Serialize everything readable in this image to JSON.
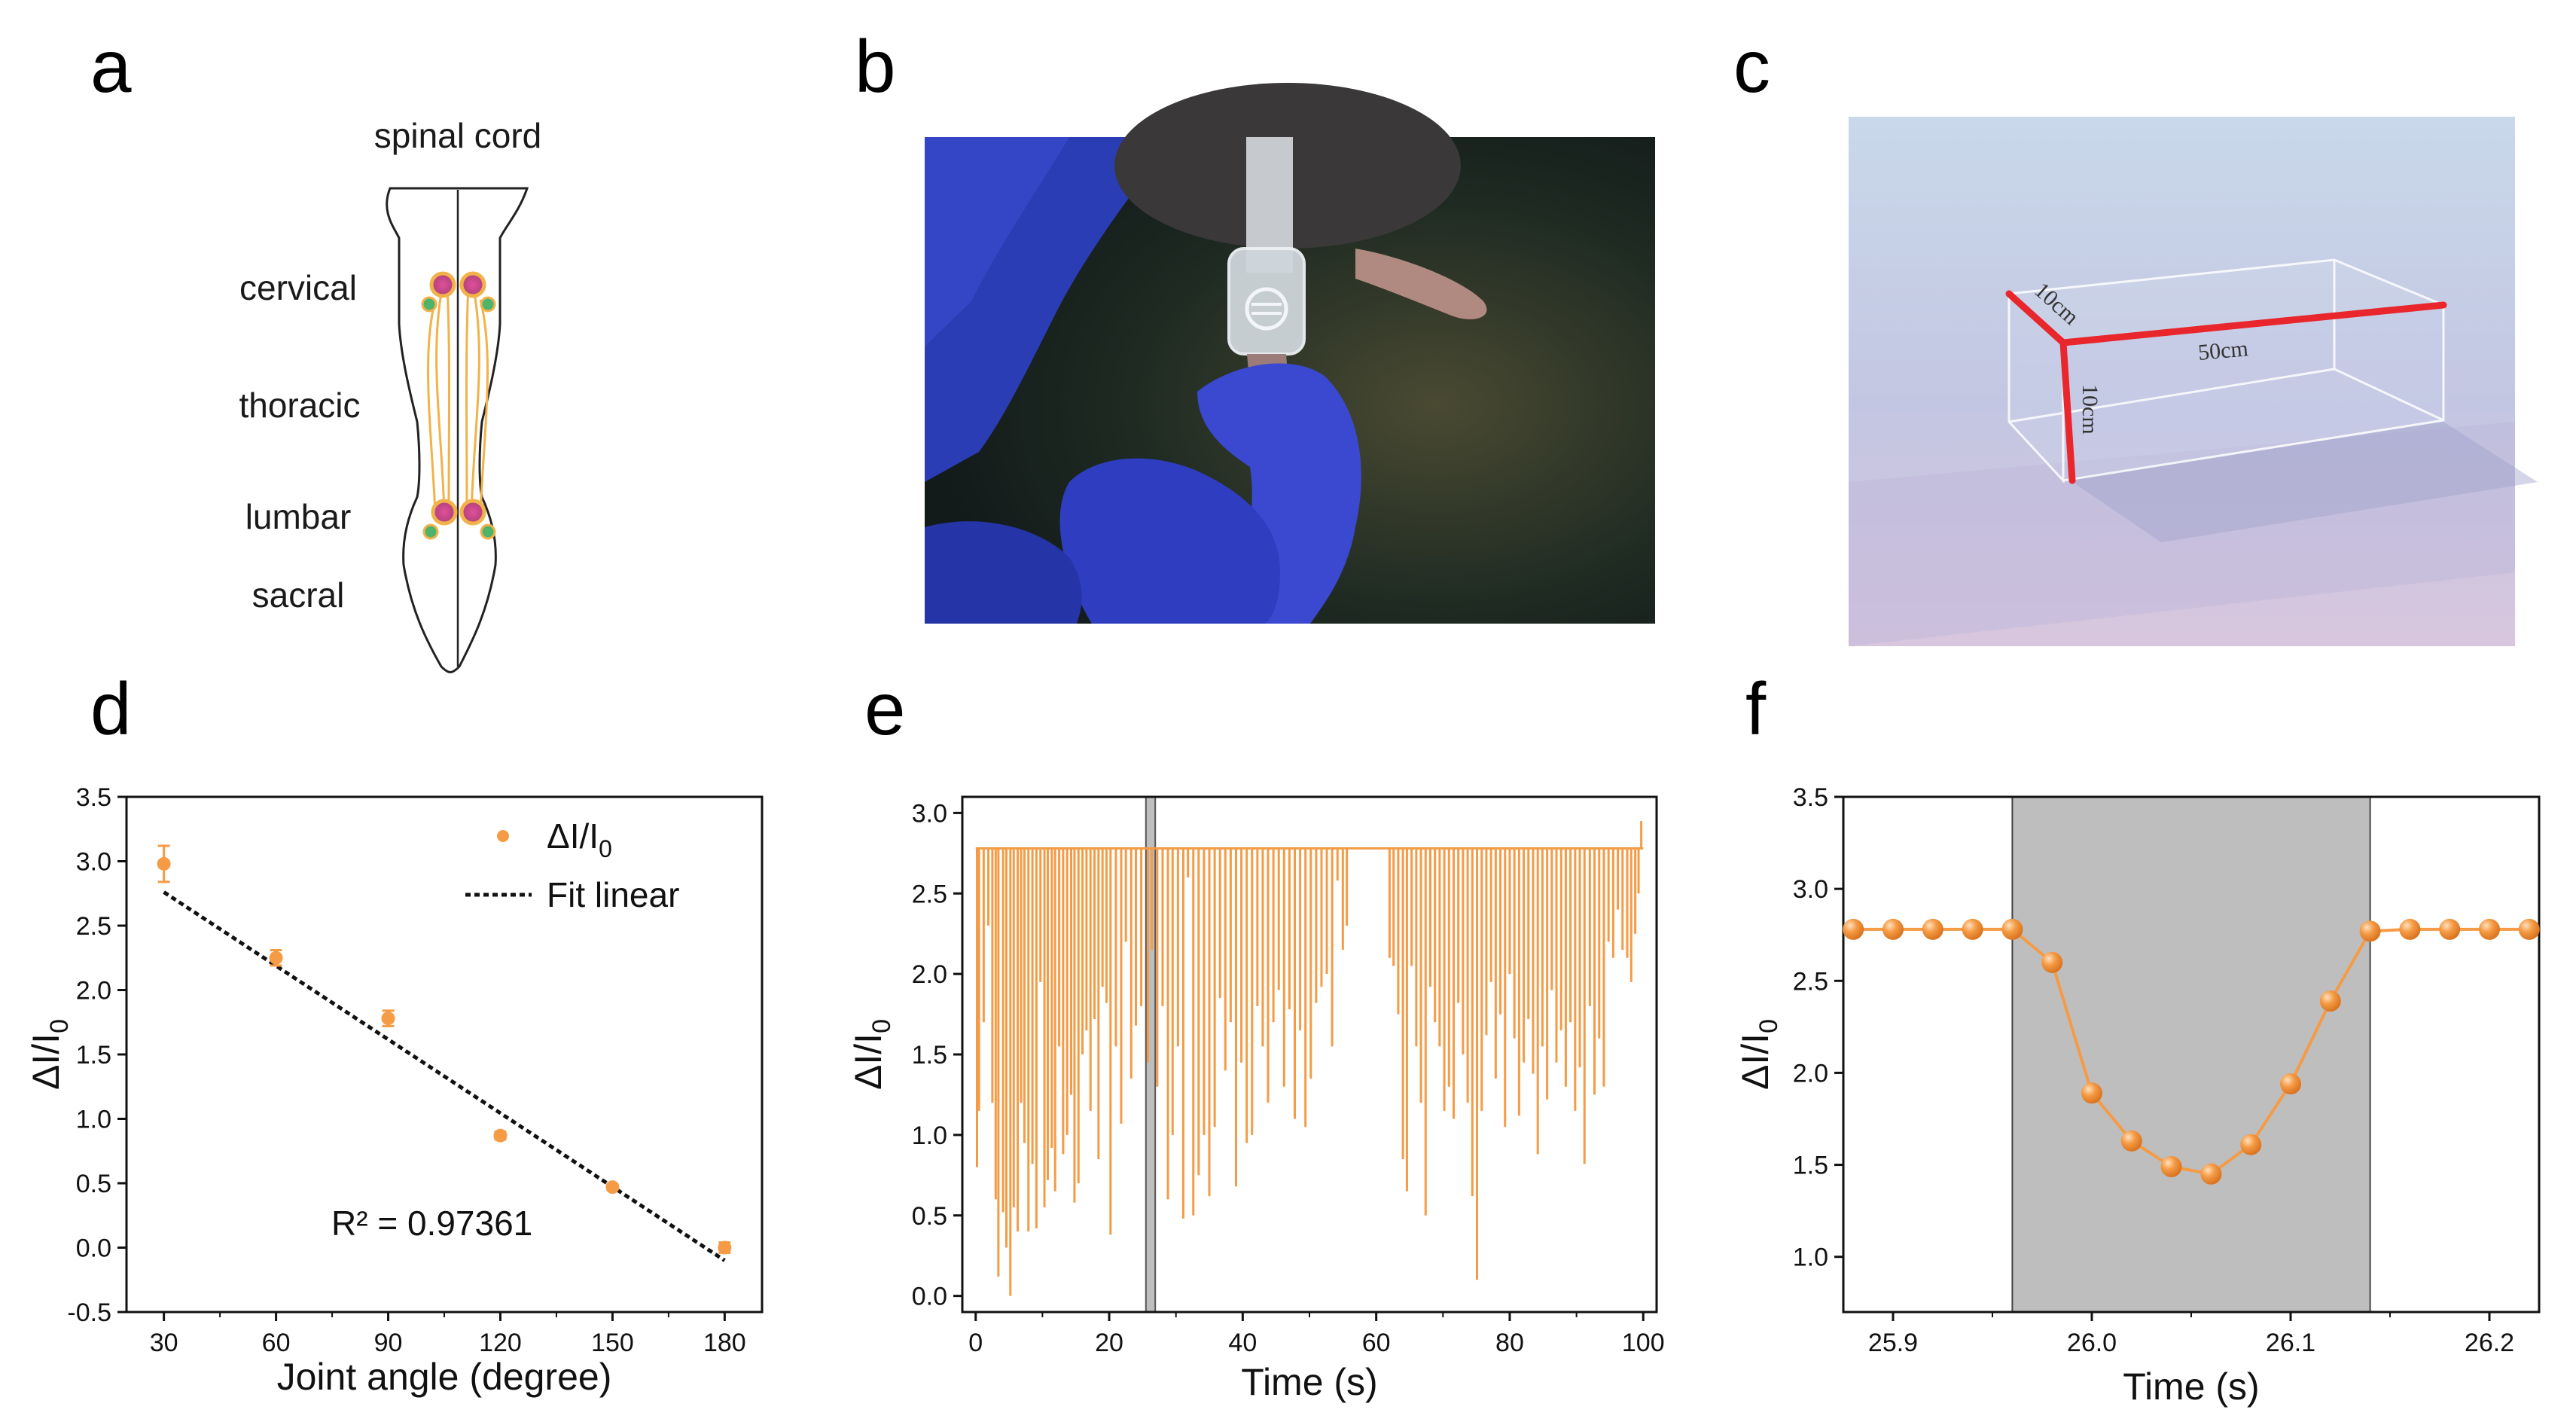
{
  "panels": {
    "a": {
      "label": "a",
      "title": "spinal cord",
      "regions": [
        "cervical",
        "thoracic",
        "lumbar",
        "sacral"
      ]
    },
    "b": {
      "label": "b"
    },
    "c": {
      "label": "c",
      "dimensions": {
        "width": "10cm",
        "length": "50cm",
        "height": "10cm"
      }
    },
    "d": {
      "label": "d"
    },
    "e": {
      "label": "e"
    },
    "f": {
      "label": "f"
    }
  },
  "colors": {
    "series": "#F59B45",
    "fit": "#111111",
    "shade": "#BEBEBE"
  },
  "chart_data": [
    {
      "id": "d",
      "type": "scatter",
      "x": [
        30,
        60,
        90,
        120,
        150,
        180
      ],
      "y": [
        2.98,
        2.25,
        1.78,
        0.87,
        0.47,
        0.0
      ],
      "yerr": [
        0.14,
        0.06,
        0.06,
        0.03,
        0.02,
        0.04
      ],
      "fit": {
        "slope": -0.01933,
        "intercept": 3.38
      },
      "series_label": "ΔI/I0",
      "fit_label": "Fit linear",
      "r2_label": "R² = 0.97361",
      "xlabel": "Joint angle (degree)",
      "ylabel": "ΔI/I0",
      "xlim": [
        20,
        190
      ],
      "ylim": [
        -0.5,
        3.5
      ],
      "xticks": [
        "30",
        "60",
        "90",
        "120",
        "150",
        "180"
      ],
      "yticks": [
        "-0.5",
        "0.0",
        "0.5",
        "1.0",
        "1.5",
        "2.0",
        "2.5",
        "3.0",
        "3.5"
      ]
    },
    {
      "id": "e",
      "type": "line",
      "baseline": 2.78,
      "spikes": [
        [
          0.2,
          0.8
        ],
        [
          0.5,
          1.15
        ],
        [
          1.2,
          1.7
        ],
        [
          1.9,
          2.3
        ],
        [
          2.5,
          1.2
        ],
        [
          3.0,
          0.6
        ],
        [
          3.4,
          0.12
        ],
        [
          4.1,
          0.52
        ],
        [
          4.6,
          0.3
        ],
        [
          5.2,
          0.0
        ],
        [
          5.7,
          0.55
        ],
        [
          6.3,
          0.4
        ],
        [
          6.8,
          1.2
        ],
        [
          7.3,
          0.95
        ],
        [
          7.9,
          0.4
        ],
        [
          8.5,
          0.82
        ],
        [
          9.1,
          0.42
        ],
        [
          9.7,
          1.95
        ],
        [
          10.3,
          0.55
        ],
        [
          10.8,
          0.72
        ],
        [
          11.4,
          0.92
        ],
        [
          11.9,
          0.65
        ],
        [
          12.5,
          1.55
        ],
        [
          13.1,
          0.88
        ],
        [
          13.7,
          1.0
        ],
        [
          14.3,
          1.25
        ],
        [
          14.8,
          0.58
        ],
        [
          15.4,
          0.7
        ],
        [
          16.0,
          1.5
        ],
        [
          16.6,
          1.65
        ],
        [
          17.2,
          1.15
        ],
        [
          17.8,
          1.72
        ],
        [
          18.4,
          0.85
        ],
        [
          19.0,
          1.92
        ],
        [
          19.6,
          1.82
        ],
        [
          20.2,
          0.38
        ],
        [
          21.0,
          1.55
        ],
        [
          21.8,
          1.07
        ],
        [
          22.5,
          2.2
        ],
        [
          23.3,
          1.35
        ],
        [
          24.0,
          1.68
        ],
        [
          24.8,
          1.8
        ],
        [
          25.8,
          1.45
        ],
        [
          26.4,
          2.15
        ],
        [
          27.2,
          1.3
        ],
        [
          28.0,
          1.8
        ],
        [
          28.8,
          0.6
        ],
        [
          29.5,
          1.0
        ],
        [
          30.3,
          1.55
        ],
        [
          31.1,
          0.48
        ],
        [
          31.8,
          2.6
        ],
        [
          32.6,
          0.5
        ],
        [
          33.4,
          0.75
        ],
        [
          34.2,
          1.0
        ],
        [
          35.0,
          0.62
        ],
        [
          35.8,
          1.05
        ],
        [
          36.6,
          1.85
        ],
        [
          37.4,
          1.4
        ],
        [
          38.2,
          1.7
        ],
        [
          39.0,
          0.68
        ],
        [
          39.8,
          1.45
        ],
        [
          40.6,
          0.95
        ],
        [
          41.4,
          1.0
        ],
        [
          42.2,
          1.8
        ],
        [
          43.0,
          1.55
        ],
        [
          43.8,
          1.2
        ],
        [
          44.6,
          1.7
        ],
        [
          45.4,
          1.9
        ],
        [
          46.2,
          1.3
        ],
        [
          47.0,
          1.78
        ],
        [
          47.8,
          1.1
        ],
        [
          48.6,
          1.65
        ],
        [
          49.4,
          1.05
        ],
        [
          50.2,
          1.35
        ],
        [
          51.0,
          1.82
        ],
        [
          51.8,
          1.92
        ],
        [
          52.6,
          2.0
        ],
        [
          53.4,
          1.55
        ],
        [
          54.2,
          2.58
        ],
        [
          55.0,
          2.15
        ],
        [
          55.6,
          2.3
        ],
        [
          62.0,
          2.1
        ],
        [
          62.6,
          2.05
        ],
        [
          63.3,
          1.75
        ],
        [
          64.0,
          0.85
        ],
        [
          64.6,
          0.65
        ],
        [
          65.3,
          2.05
        ],
        [
          66.0,
          1.55
        ],
        [
          66.7,
          1.2
        ],
        [
          67.4,
          0.5
        ],
        [
          68.1,
          1.92
        ],
        [
          68.8,
          1.7
        ],
        [
          69.5,
          1.55
        ],
        [
          70.2,
          1.15
        ],
        [
          70.9,
          1.3
        ],
        [
          71.6,
          1.1
        ],
        [
          72.3,
          1.82
        ],
        [
          73.0,
          1.5
        ],
        [
          73.7,
          1.2
        ],
        [
          74.4,
          0.62
        ],
        [
          75.1,
          0.1
        ],
        [
          75.8,
          1.15
        ],
        [
          76.5,
          1.62
        ],
        [
          77.2,
          1.95
        ],
        [
          77.9,
          1.35
        ],
        [
          78.6,
          1.75
        ],
        [
          79.3,
          1.05
        ],
        [
          80.0,
          2.0
        ],
        [
          80.7,
          1.6
        ],
        [
          81.4,
          1.12
        ],
        [
          82.1,
          1.45
        ],
        [
          82.8,
          1.72
        ],
        [
          83.5,
          1.38
        ],
        [
          84.2,
          0.88
        ],
        [
          84.9,
          1.55
        ],
        [
          85.6,
          1.22
        ],
        [
          86.3,
          1.9
        ],
        [
          87.0,
          1.45
        ],
        [
          87.7,
          1.65
        ],
        [
          88.4,
          1.3
        ],
        [
          89.1,
          1.7
        ],
        [
          89.8,
          1.15
        ],
        [
          90.5,
          1.42
        ],
        [
          91.2,
          0.82
        ],
        [
          92.0,
          1.8
        ],
        [
          92.7,
          1.25
        ],
        [
          93.4,
          1.6
        ],
        [
          94.1,
          1.3
        ],
        [
          94.8,
          2.2
        ],
        [
          95.5,
          2.1
        ],
        [
          96.2,
          2.4
        ],
        [
          96.9,
          2.15
        ],
        [
          97.6,
          2.1
        ],
        [
          98.2,
          1.95
        ],
        [
          98.8,
          2.25
        ],
        [
          99.3,
          2.5
        ],
        [
          99.7,
          2.95
        ]
      ],
      "highlight": [
        25.5,
        26.9
      ],
      "xlabel": "Time (s)",
      "ylabel": "ΔI/I0",
      "xlim": [
        -2,
        102
      ],
      "ylim": [
        -0.1,
        3.1
      ],
      "xticks": [
        "0",
        "20",
        "40",
        "60",
        "80",
        "100"
      ],
      "yticks": [
        "0.0",
        "0.5",
        "1.0",
        "1.5",
        "2.0",
        "2.5",
        "3.0"
      ]
    },
    {
      "id": "f",
      "type": "line",
      "x": [
        25.88,
        25.9,
        25.92,
        25.94,
        25.96,
        25.98,
        26.0,
        26.02,
        26.04,
        26.06,
        26.08,
        26.1,
        26.12,
        26.14,
        26.16,
        26.18,
        26.2,
        26.22
      ],
      "y": [
        2.78,
        2.78,
        2.78,
        2.78,
        2.78,
        2.6,
        1.89,
        1.63,
        1.49,
        1.45,
        1.61,
        1.94,
        2.39,
        2.77,
        2.78,
        2.78,
        2.78,
        2.78
      ],
      "shade": [
        25.96,
        26.14
      ],
      "xlabel": "Time (s)",
      "ylabel": "ΔI/I0",
      "xlim": [
        25.875,
        26.225
      ],
      "ylim": [
        0.7,
        3.5
      ],
      "xticks": [
        "25.9",
        "26.0",
        "26.1",
        "26.2"
      ],
      "yticks": [
        "1.0",
        "1.5",
        "2.0",
        "2.5",
        "3.0",
        "3.5"
      ]
    }
  ]
}
